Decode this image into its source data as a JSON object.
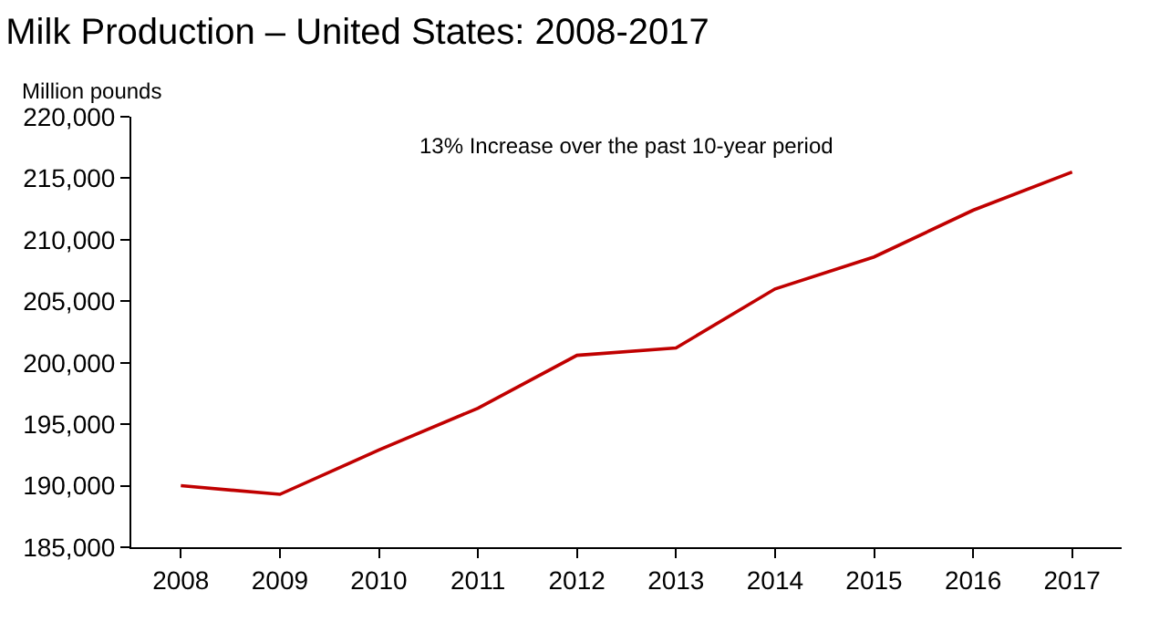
{
  "chart_data": {
    "type": "line",
    "title": "Milk Production – United States: 2008-2017",
    "ylabel": "Million pounds",
    "categories": [
      "2008",
      "2009",
      "2010",
      "2011",
      "2012",
      "2013",
      "2014",
      "2015",
      "2016",
      "2017"
    ],
    "series": [
      {
        "color": "#c00000",
        "values": [
          190000,
          189300,
          192900,
          196300,
          200600,
          201200,
          206000,
          208600,
          212400,
          215500
        ]
      }
    ],
    "ylim": [
      185000,
      220000
    ],
    "yticks": [
      {
        "value": 185000,
        "label": "185,000"
      },
      {
        "value": 190000,
        "label": "190,000"
      },
      {
        "value": 195000,
        "label": "195,000"
      },
      {
        "value": 200000,
        "label": "200,000"
      },
      {
        "value": 205000,
        "label": "205,000"
      },
      {
        "value": 210000,
        "label": "210,000"
      },
      {
        "value": 215000,
        "label": "215,000"
      },
      {
        "value": 220000,
        "label": "220,000"
      }
    ],
    "annotations": [
      "13% Increase over the past 10-year period"
    ],
    "grid": false,
    "marker": "none",
    "line_style": "solid"
  }
}
